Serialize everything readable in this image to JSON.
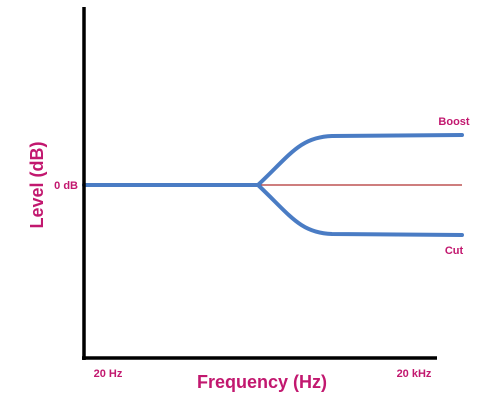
{
  "y_axis": {
    "title": "Level (dB)",
    "label": "0 dB"
  },
  "x_axis": {
    "title": "Frequency (Hz)",
    "labels": [
      "20 Hz",
      "20 kHz"
    ]
  },
  "curves": [
    "Boost",
    "Cut"
  ]
}
